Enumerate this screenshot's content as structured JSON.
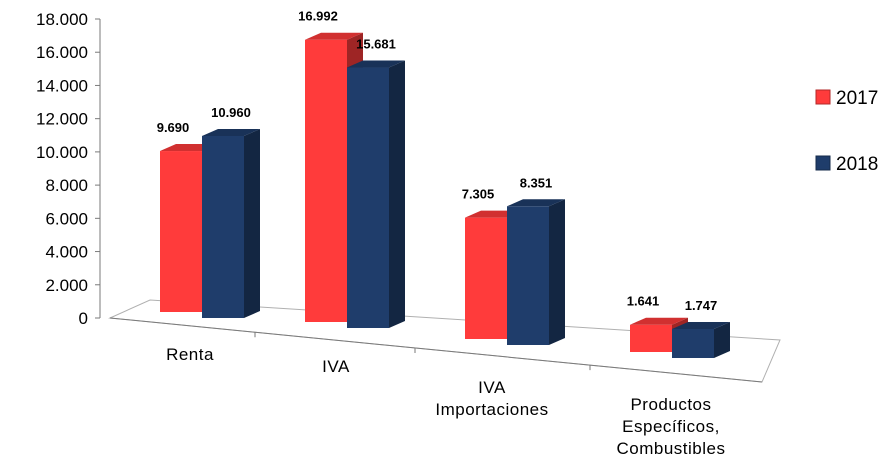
{
  "chart_data": {
    "type": "bar",
    "title": "",
    "xlabel": "",
    "ylabel": "",
    "ylim": [
      0,
      18000
    ],
    "yticks": [
      "0",
      "2.000",
      "4.000",
      "6.000",
      "8.000",
      "10.000",
      "12.000",
      "14.000",
      "16.000",
      "18.000"
    ],
    "categories": [
      [
        "Renta"
      ],
      [
        "IVA"
      ],
      [
        "IVA",
        "Importaciones"
      ],
      [
        "Productos",
        "Específicos,",
        "Combustibles"
      ]
    ],
    "series": [
      {
        "name": "2017",
        "color": "#ff3b3b",
        "values": [
          9690,
          16992,
          7305,
          1641
        ],
        "labels": [
          "9.690",
          "16.992",
          "7.305",
          "1.641"
        ]
      },
      {
        "name": "2018",
        "color": "#1f3d6b",
        "values": [
          10960,
          15681,
          8351,
          1747
        ],
        "labels": [
          "10.960",
          "15.681",
          "8.351",
          "1.747"
        ]
      }
    ],
    "legend_position": "right",
    "grid": false,
    "style": "3d-bars"
  }
}
